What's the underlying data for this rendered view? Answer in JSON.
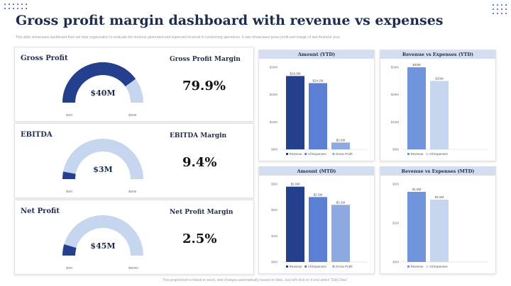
{
  "page": {
    "title": "Gross profit margin dashboard with revenue vs expenses",
    "subtitle": "This slide showcases dashboard that can help organization to evaluate the revenue generated and expenses incurred in conducting operations. It also showcases gross profit and margin of last financial year.",
    "footer": "This graph/chart is linked to excel, and changes automatically based on data. Just left click on it and select \"Edit Data\"."
  },
  "colors": {
    "dark": "#243f8c",
    "light": "#c6d6ee",
    "accent": "#2f5bb7"
  },
  "kpis": [
    {
      "label": "Gross Profit",
      "value": "$40M",
      "fill_fraction": 0.8,
      "min_label": "$0M",
      "max_label": "$50M",
      "margin_label": "Gross Profit Margin",
      "margin_value": "79.9%"
    },
    {
      "label": "EBITDA",
      "value": "$3M",
      "fill_fraction": 0.06,
      "min_label": "$0M",
      "max_label": "$50M",
      "margin_label": "EBITDA Margin",
      "margin_value": "9.4%"
    },
    {
      "label": "Net Profit",
      "value": "$45M",
      "fill_fraction": 0.09,
      "min_label": "$0M",
      "max_label": "$500M",
      "margin_label": "Net Profit Margin",
      "margin_value": "2.5%"
    }
  ],
  "chart_data": [
    {
      "type": "bar",
      "title": "Amount (YTD)",
      "categories": [
        "Revenue",
        "All Expenses",
        "Gross Profit"
      ],
      "values": [
        26.8,
        24.2,
        2.5
      ],
      "data_labels": [
        "$26.8M",
        "$24.2M",
        "$2.5M"
      ],
      "colors": [
        "#243f8c",
        "#5b7fd2",
        "#8ea9e0"
      ],
      "yticks": [
        "$0M",
        "$10M",
        "$20M",
        "$30M"
      ],
      "ylim": [
        0,
        30
      ]
    },
    {
      "type": "bar",
      "title": "Revenue vs Expenses (YTD)",
      "categories": [
        "Revenue",
        "All Expenses"
      ],
      "values": [
        30,
        25
      ],
      "data_labels": [
        "$30M",
        "$25M"
      ],
      "colors": [
        "#6f95dc",
        "#c6d6ee"
      ],
      "yticks": [
        "$0M",
        "$10M",
        "$20M",
        "$30M"
      ],
      "ylim": [
        0,
        30
      ]
    },
    {
      "type": "bar",
      "title": "Amount (MTD)",
      "categories": [
        "Revenue",
        "All Expenses",
        "Gross Profit"
      ],
      "values": [
        2.9,
        2.5,
        2.2
      ],
      "data_labels": [
        "$2.9M",
        "$2.5M",
        "$2.2M"
      ],
      "colors": [
        "#243f8c",
        "#5b7fd2",
        "#8ea9e0"
      ],
      "yticks": [
        "$0M",
        "$1M",
        "$2M",
        "$3M"
      ],
      "ylim": [
        0,
        3
      ]
    },
    {
      "type": "bar",
      "title": "Revenue vs Expenses (MTD)",
      "categories": [
        "Revenue",
        "All Expenses"
      ],
      "values": [
        1.8,
        1.6
      ],
      "data_labels": [
        "$1.8M",
        "$1.6M"
      ],
      "colors": [
        "#6f95dc",
        "#c6d6ee"
      ],
      "yticks": [
        "$0M",
        "$1M",
        "$2M"
      ],
      "ylim": [
        0,
        2
      ]
    }
  ]
}
